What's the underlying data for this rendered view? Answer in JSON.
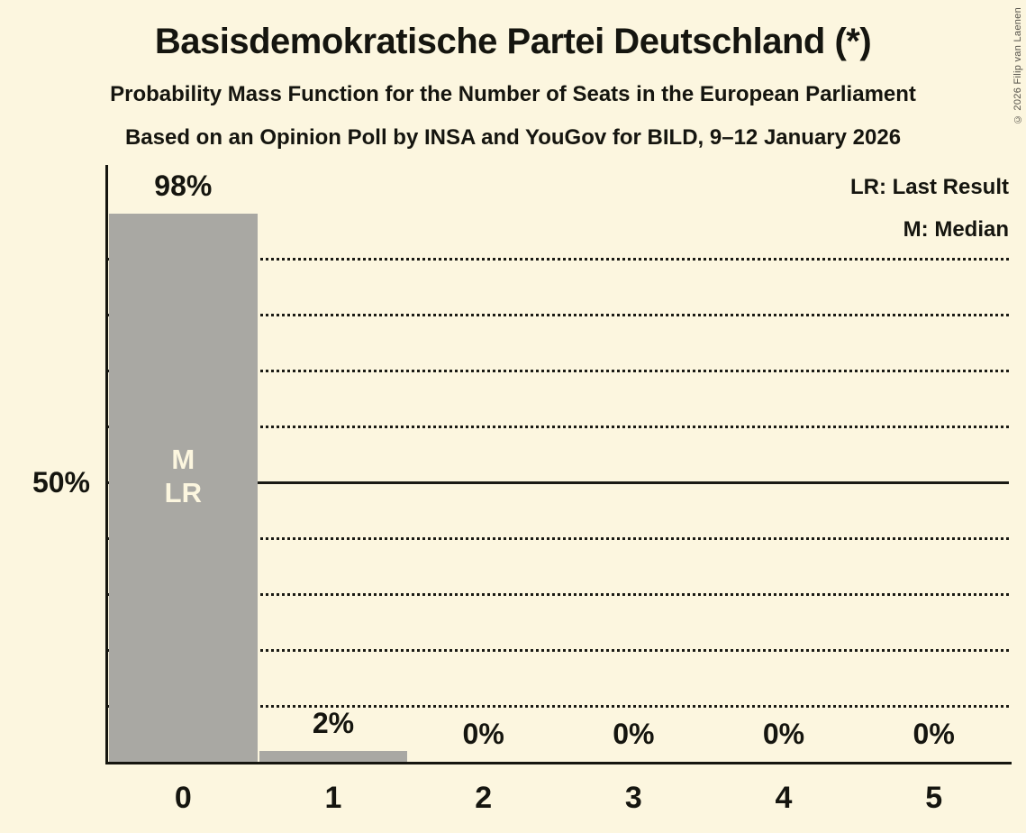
{
  "title": "Basisdemokratische Partei Deutschland (*)",
  "subtitle": "Probability Mass Function for the Number of Seats in the European Parliament",
  "source_line": "Based on an Opinion Poll by INSA and YouGov for BILD, 9–12 January 2026",
  "copyright": "© 2026 Filip van Laenen",
  "legend": {
    "last_result": "LR: Last Result",
    "median": "M: Median"
  },
  "colors": {
    "background": "#fcf6df",
    "bar": "#a9a8a3",
    "text": "#15150f",
    "bar_annotation_text": "#fcf6df",
    "grid": "#1a1a14"
  },
  "chart_data": {
    "type": "bar",
    "title": "Basisdemokratische Partei Deutschland (*)",
    "categories": [
      "0",
      "1",
      "2",
      "3",
      "4",
      "5"
    ],
    "values": [
      98,
      2,
      0,
      0,
      0,
      0
    ],
    "value_labels": [
      "98%",
      "2%",
      "0%",
      "0%",
      "0%",
      "0%"
    ],
    "bar_annotations": {
      "0": [
        "M",
        "LR"
      ]
    },
    "xlabel": "",
    "ylabel": "",
    "y_tick_label": "50%",
    "y_tick_value": 50,
    "ylim": [
      0,
      107
    ],
    "gridlines_percent": [
      10,
      20,
      30,
      40,
      50,
      60,
      70,
      80,
      90
    ],
    "solid_gridline_percent": 50,
    "grid_style": "dotted",
    "legend_position": "top-right",
    "legend_entries": [
      "LR: Last Result",
      "M: Median"
    ]
  }
}
